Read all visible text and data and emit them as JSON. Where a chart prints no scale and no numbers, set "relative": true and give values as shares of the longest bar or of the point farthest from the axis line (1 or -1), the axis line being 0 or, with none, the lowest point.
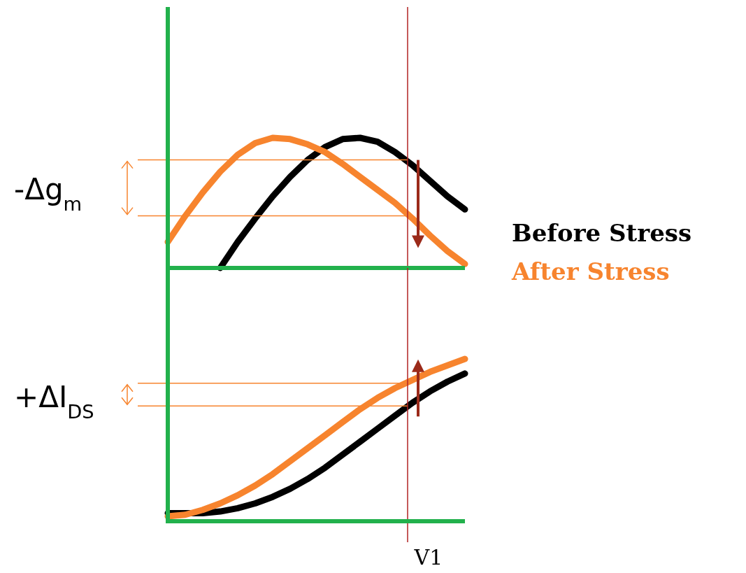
{
  "chart_data": [
    {
      "type": "line",
      "relative": true,
      "categories": [
        null,
        null,
        null,
        null,
        null,
        null,
        null,
        null,
        null,
        null,
        null,
        null,
        null,
        null,
        null,
        null,
        null,
        null
      ],
      "series": [
        {
          "name": "Before Stress",
          "color": "#000000",
          "values": [
            null,
            null,
            null,
            0,
            0.2,
            0.38,
            0.55,
            0.7,
            0.83,
            0.93,
            0.99,
            1.0,
            0.97,
            0.89,
            0.79,
            0.67,
            0.55,
            0.45
          ]
        },
        {
          "name": "After Stress",
          "color": "#f7842e",
          "values": [
            0.2,
            0.4,
            0.58,
            0.74,
            0.87,
            0.96,
            1.0,
            0.99,
            0.95,
            0.89,
            0.8,
            0.7,
            0.6,
            0.5,
            0.38,
            0.25,
            0.13,
            0.03
          ]
        }
      ],
      "ref_lines": [
        {
          "axis": "y",
          "value": 0.83,
          "color": "#f7842e"
        },
        {
          "axis": "y",
          "value": 0.4,
          "color": "#f7842e"
        }
      ],
      "annotations": [
        "-Δg$_{m}$"
      ]
    },
    {
      "type": "line",
      "relative": true,
      "categories": [
        null,
        null,
        null,
        null,
        null,
        null,
        null,
        null,
        null,
        null,
        null,
        null,
        null,
        null,
        null,
        null,
        null,
        null
      ],
      "series": [
        {
          "color": "#000000",
          "values": [
            0.05,
            0.05,
            0.05,
            0.06,
            0.08,
            0.11,
            0.15,
            0.2,
            0.26,
            0.33,
            0.41,
            0.49,
            0.57,
            0.65,
            0.73,
            0.8,
            0.86,
            0.91
          ]
        },
        {
          "color": "#f7842e",
          "values": [
            0.03,
            0.04,
            0.07,
            0.11,
            0.16,
            0.22,
            0.29,
            0.37,
            0.45,
            0.53,
            0.61,
            0.69,
            0.76,
            0.82,
            0.87,
            0.92,
            0.96,
            1.0
          ]
        }
      ],
      "ref_lines": [
        {
          "axis": "y",
          "value": 0.85,
          "color": "#f7842e"
        },
        {
          "axis": "y",
          "value": 0.71,
          "color": "#f7842e"
        }
      ],
      "annotations": [
        "+ΔI$_{DS}$",
        "V1"
      ]
    }
  ]
}
